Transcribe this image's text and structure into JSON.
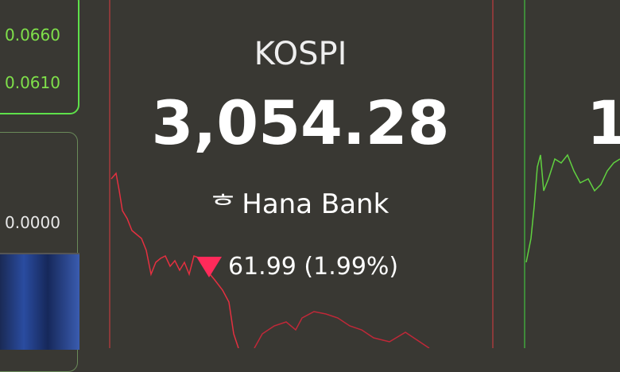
{
  "left_panel": {
    "values": [
      "0.0660",
      "0.0610",
      "0.0000"
    ]
  },
  "index": {
    "name": "KOSPI",
    "value": "3,054.28",
    "sponsor": "Hana Bank",
    "change": "61.99 (1.99%)",
    "direction": "down",
    "down_color": "#ff2a5a"
  },
  "right_partial": {
    "value_fragment": "1"
  }
}
